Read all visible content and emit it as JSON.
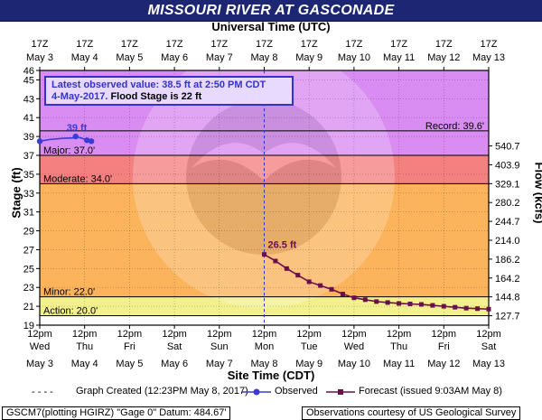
{
  "title": "MISSOURI RIVER AT GASCONADE",
  "top_axis_title": "Universal Time (UTC)",
  "bottom_axis_title": "Site Time (CDT)",
  "left_axis_title": "Stage (ft)",
  "right_axis_title": "Flow (kcfs)",
  "observed_box": {
    "line1": "Latest observed value: 38.5 ft at 2:50 PM CDT",
    "date": "4-May-2017.",
    "flood_stage": "Flood Stage is 22 ft"
  },
  "legend": {
    "created": "Graph Created (12:23PM May 8, 2017)",
    "observed": "Observed",
    "forecast": "Forecast (issued 9:03AM May 8)"
  },
  "footer": {
    "left": "GSCM7(plotting HGIRZ) \"Gage 0\" Datum: 484.67'",
    "right": "Observations courtesy of US Geological Survey"
  },
  "colors": {
    "title_bg": "#1c2673",
    "record_zone": "#d98cf2",
    "major_zone": "#f58080",
    "moderate_zone": "#fbb35c",
    "minor_zone": "#f3f08e",
    "observed": "#3b3bd6",
    "forecast": "#6b0f4a"
  },
  "chart_data": {
    "type": "line",
    "x_unit": "days from May 3 12pm CDT",
    "ylim": [
      19,
      46
    ],
    "xlim": [
      0,
      10
    ],
    "y_ticks": [
      19,
      21,
      23,
      25,
      27,
      29,
      31,
      33,
      35,
      37,
      39,
      41,
      43,
      45,
      46
    ],
    "flow_ticks": [
      {
        "stage": 20,
        "label": "127.7"
      },
      {
        "stage": 22,
        "label": "144.8"
      },
      {
        "stage": 24,
        "label": "164.2"
      },
      {
        "stage": 26,
        "label": "186.2"
      },
      {
        "stage": 28,
        "label": "214.0"
      },
      {
        "stage": 30,
        "label": "244.7"
      },
      {
        "stage": 32,
        "label": "280.2"
      },
      {
        "stage": 34,
        "label": "329.1"
      },
      {
        "stage": 36,
        "label": "403.9"
      },
      {
        "stage": 38,
        "label": "540.7"
      }
    ],
    "top_ticks": [
      {
        "line1": "17Z",
        "line2": "May 3"
      },
      {
        "line1": "17Z",
        "line2": "May 4"
      },
      {
        "line1": "17Z",
        "line2": "May 5"
      },
      {
        "line1": "17Z",
        "line2": "May 6"
      },
      {
        "line1": "17Z",
        "line2": "May 7"
      },
      {
        "line1": "17Z",
        "line2": "May 8"
      },
      {
        "line1": "17Z",
        "line2": "May 9"
      },
      {
        "line1": "17Z",
        "line2": "May 10"
      },
      {
        "line1": "17Z",
        "line2": "May 11"
      },
      {
        "line1": "17Z",
        "line2": "May 12"
      },
      {
        "line1": "17Z",
        "line2": "May 13"
      }
    ],
    "bottom_ticks": [
      {
        "time": "12pm",
        "day": "Wed",
        "date": "May 3"
      },
      {
        "time": "12pm",
        "day": "Thu",
        "date": "May 4"
      },
      {
        "time": "12pm",
        "day": "Fri",
        "date": "May 5"
      },
      {
        "time": "12pm",
        "day": "Sat",
        "date": "May 6"
      },
      {
        "time": "12pm",
        "day": "Sun",
        "date": "May 7"
      },
      {
        "time": "12pm",
        "day": "Mon",
        "date": "May 8"
      },
      {
        "time": "12pm",
        "day": "Tue",
        "date": "May 9"
      },
      {
        "time": "12pm",
        "day": "Wed",
        "date": "May 10"
      },
      {
        "time": "12pm",
        "day": "Thu",
        "date": "May 11"
      },
      {
        "time": "12pm",
        "day": "Fri",
        "date": "May 12"
      },
      {
        "time": "12pm",
        "day": "Sat",
        "date": "May 13"
      }
    ],
    "zones": [
      {
        "name": "Record",
        "label": "Record: 39.6'",
        "stage": 39.6
      },
      {
        "name": "Major",
        "label": "Major: 37.0'",
        "stage": 37.0
      },
      {
        "name": "Moderate",
        "label": "Moderate: 34.0'",
        "stage": 34.0
      },
      {
        "name": "Minor",
        "label": "Minor: 22.0'",
        "stage": 22.0
      },
      {
        "name": "Action",
        "label": "Action: 20.0'",
        "stage": 20.0
      }
    ],
    "observed": {
      "name": "Observed",
      "peak_label": "39 ft",
      "points": [
        [
          0.0,
          38.5
        ],
        [
          0.25,
          38.7
        ],
        [
          0.5,
          38.8
        ],
        [
          0.75,
          38.85
        ],
        [
          0.8,
          39.0
        ],
        [
          0.95,
          38.8
        ],
        [
          1.05,
          38.6
        ],
        [
          1.15,
          38.5
        ]
      ]
    },
    "forecast": {
      "name": "Forecast",
      "peak_label": "26.5 ft",
      "points": [
        [
          5.0,
          26.5
        ],
        [
          5.25,
          25.8
        ],
        [
          5.5,
          25.0
        ],
        [
          5.75,
          24.3
        ],
        [
          6.0,
          23.6
        ],
        [
          6.25,
          23.2
        ],
        [
          6.5,
          22.8
        ],
        [
          6.75,
          22.3
        ],
        [
          7.0,
          21.9
        ],
        [
          7.25,
          21.7
        ],
        [
          7.5,
          21.5
        ],
        [
          7.75,
          21.4
        ],
        [
          8.0,
          21.3
        ],
        [
          8.25,
          21.25
        ],
        [
          8.5,
          21.2
        ],
        [
          8.75,
          21.1
        ],
        [
          9.0,
          21.0
        ],
        [
          9.25,
          20.9
        ],
        [
          9.5,
          20.8
        ],
        [
          9.75,
          20.75
        ],
        [
          10.0,
          20.7
        ]
      ]
    },
    "current_time_x": 5.0,
    "grid": true
  }
}
